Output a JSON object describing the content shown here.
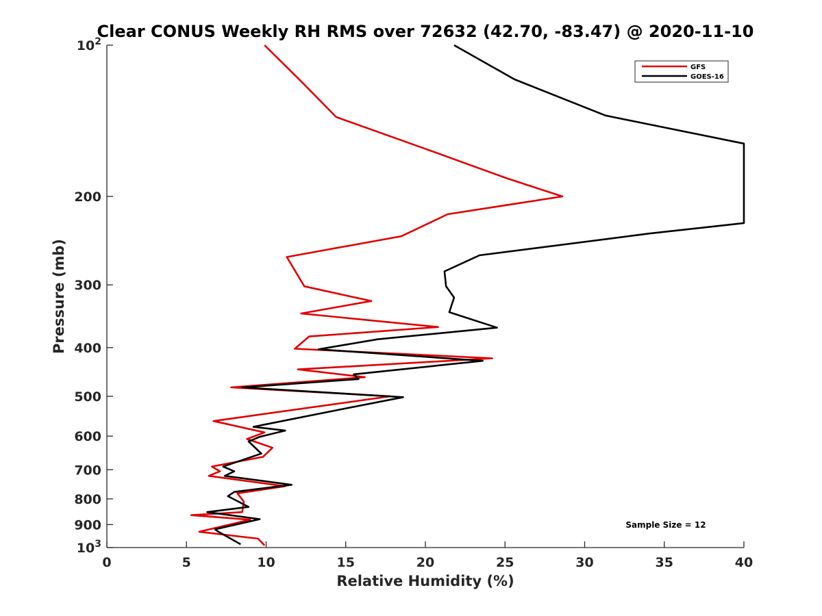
{
  "chart_data": {
    "type": "line",
    "title": "Clear CONUS Weekly RH RMS over 72632 (42.70, -83.47) @ 2020-11-10",
    "xlabel": "Relative Humidity (%)",
    "ylabel": "Pressure (mb)",
    "xlim": [
      0,
      40
    ],
    "ylim": [
      100,
      1000
    ],
    "yscale": "log",
    "y_reversed": true,
    "grid": false,
    "legend_position": "top-right",
    "x_ticks": [
      0,
      5,
      10,
      15,
      20,
      25,
      30,
      35,
      40
    ],
    "x_tick_labels": [
      "0",
      "5",
      "10",
      "15",
      "20",
      "25",
      "30",
      "35",
      "40"
    ],
    "y_ticks": [
      100,
      200,
      300,
      400,
      500,
      600,
      700,
      800,
      900,
      1000
    ],
    "y_tick_labels": [
      {
        "base": "10",
        "sup": "2"
      },
      {
        "base": "200",
        "sup": ""
      },
      {
        "base": "300",
        "sup": ""
      },
      {
        "base": "400",
        "sup": ""
      },
      {
        "base": "500",
        "sup": ""
      },
      {
        "base": "600",
        "sup": ""
      },
      {
        "base": "700",
        "sup": ""
      },
      {
        "base": "800",
        "sup": ""
      },
      {
        "base": "900",
        "sup": ""
      },
      {
        "base": "10",
        "sup": "3"
      }
    ],
    "series": [
      {
        "name": "GFS",
        "color": "#e00000",
        "points": [
          [
            9.9,
            100
          ],
          [
            12.2,
            118
          ],
          [
            14.4,
            139
          ],
          [
            19.8,
            160
          ],
          [
            25.1,
            184
          ],
          [
            28.6,
            200
          ],
          [
            21.4,
            217
          ],
          [
            18.5,
            240
          ],
          [
            11.3,
            264
          ],
          [
            12.4,
            302
          ],
          [
            16.6,
            323
          ],
          [
            12.2,
            342
          ],
          [
            20.8,
            364
          ],
          [
            12.7,
            380
          ],
          [
            11.8,
            402
          ],
          [
            24.2,
            420
          ],
          [
            12.0,
            442
          ],
          [
            16.2,
            458
          ],
          [
            7.8,
            480
          ],
          [
            17.8,
            500
          ],
          [
            6.7,
            560
          ],
          [
            9.9,
            590
          ],
          [
            8.8,
            608
          ],
          [
            10.4,
            633
          ],
          [
            9.8,
            660
          ],
          [
            6.6,
            690
          ],
          [
            7.1,
            705
          ],
          [
            6.4,
            720
          ],
          [
            11.2,
            755
          ],
          [
            8.2,
            780
          ],
          [
            8.6,
            810
          ],
          [
            8.5,
            850
          ],
          [
            5.3,
            862
          ],
          [
            9.0,
            880
          ],
          [
            5.8,
            930
          ],
          [
            9.5,
            960
          ],
          [
            9.9,
            990
          ]
        ]
      },
      {
        "name": "GOES-16",
        "color": "#000000",
        "points": [
          [
            21.8,
            100
          ],
          [
            25.6,
            117
          ],
          [
            31.3,
            138
          ],
          [
            40.0,
            157
          ],
          [
            40.0,
            226
          ],
          [
            34.1,
            237
          ],
          [
            23.4,
            262
          ],
          [
            21.2,
            282
          ],
          [
            21.3,
            302
          ],
          [
            21.8,
            318
          ],
          [
            21.5,
            340
          ],
          [
            24.5,
            365
          ],
          [
            17.0,
            385
          ],
          [
            13.3,
            403
          ],
          [
            23.6,
            425
          ],
          [
            15.5,
            452
          ],
          [
            15.8,
            462
          ],
          [
            8.5,
            480
          ],
          [
            18.6,
            502
          ],
          [
            14.8,
            530
          ],
          [
            9.2,
            575
          ],
          [
            11.2,
            585
          ],
          [
            9.6,
            602
          ],
          [
            8.9,
            615
          ],
          [
            9.7,
            650
          ],
          [
            7.3,
            690
          ],
          [
            8.0,
            705
          ],
          [
            7.4,
            720
          ],
          [
            11.6,
            750
          ],
          [
            8.0,
            775
          ],
          [
            7.6,
            790
          ],
          [
            8.9,
            830
          ],
          [
            6.3,
            850
          ],
          [
            9.6,
            878
          ],
          [
            6.8,
            920
          ],
          [
            7.0,
            930
          ],
          [
            8.4,
            985
          ]
        ]
      }
    ],
    "annotations": [
      {
        "text": "Sample Size = 12",
        "location": "lower-right"
      }
    ]
  }
}
